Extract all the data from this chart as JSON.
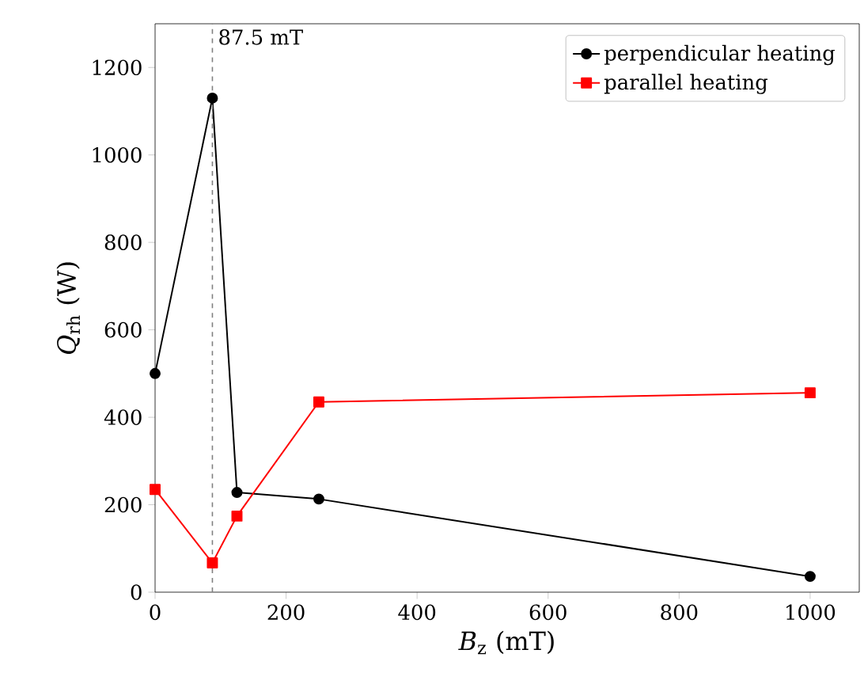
{
  "chart_data": {
    "type": "line",
    "xlabel": "*B*$_{z}$ (mT)",
    "ylabel": "*Q*$_{rh}$ (W)",
    "x": [
      0,
      87.5,
      125,
      250,
      1000
    ],
    "series": [
      {
        "name": "perpendicular heating",
        "color": "#000000",
        "marker": "circle",
        "values": [
          500,
          1130,
          228,
          213,
          36
        ]
      },
      {
        "name": "parallel heating",
        "color": "#ff0000",
        "marker": "square",
        "values": [
          235,
          67,
          174,
          435,
          456
        ]
      }
    ],
    "xlim": [
      0,
      1075
    ],
    "ylim": [
      0,
      1300
    ],
    "xticks": [
      0,
      200,
      400,
      600,
      800,
      1000
    ],
    "yticks": [
      0,
      200,
      400,
      600,
      800,
      1000,
      1200
    ],
    "ref_lines": [
      {
        "axis": "x",
        "value": 87.5,
        "label": "87.5 mT",
        "color": "#808080",
        "line_style": "dashed"
      }
    ],
    "legend": "top right",
    "grid": false
  }
}
